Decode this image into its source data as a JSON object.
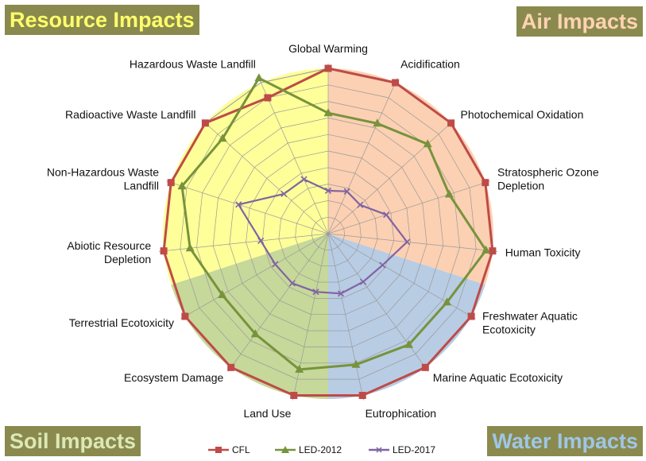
{
  "corner_labels": {
    "resource": "Resource Impacts",
    "air": "Air Impacts",
    "soil": "Soil Impacts",
    "water": "Water Impacts"
  },
  "colors": {
    "resource_fill": "#ffff99",
    "air_fill": "#fcd0b2",
    "water_fill": "#b8cce4",
    "soil_fill": "#c6d89a",
    "grid": "#9a9a9a",
    "CFL": "#be4b48",
    "LED-2012": "#77933c",
    "LED-2017": "#8064a2"
  },
  "chart_data": {
    "type": "radar",
    "categories": [
      "Global Warming",
      "Acidification",
      "Photochemical Oxidation",
      "Stratospheric Ozone Depletion",
      "Human Toxicity",
      "Freshwater Aquatic Ecotoxicity",
      "Marine Aquatic Ecotoxicity",
      "Eutrophication",
      "Land Use",
      "Ecosystem Damage",
      "Terrestrial Ecotoxicity",
      "Abiotic Resource Depletion",
      "Non-Hazardous Waste Landfill",
      "Radioactive Waste Landfill",
      "Hazardous Waste Landfill"
    ],
    "rlim": [
      0,
      1
    ],
    "grid_rings": 10,
    "regions": [
      {
        "name": "Air Impacts",
        "categories": [
          "Global Warming",
          "Acidification",
          "Photochemical Oxidation",
          "Stratospheric Ozone Depletion",
          "Human Toxicity"
        ]
      },
      {
        "name": "Water Impacts",
        "categories": [
          "Freshwater Aquatic Ecotoxicity",
          "Marine Aquatic Ecotoxicity",
          "Eutrophication"
        ]
      },
      {
        "name": "Soil Impacts",
        "categories": [
          "Land Use",
          "Ecosystem Damage",
          "Terrestrial Ecotoxicity"
        ]
      },
      {
        "name": "Resource Impacts",
        "categories": [
          "Abiotic Resource Depletion",
          "Non-Hazardous Waste Landfill",
          "Radioactive Waste Landfill",
          "Hazardous Waste Landfill"
        ]
      }
    ],
    "series": [
      {
        "name": "CFL",
        "marker": "square",
        "values": [
          1.0,
          1.0,
          1.0,
          1.0,
          1.0,
          1.0,
          1.0,
          1.0,
          1.0,
          1.0,
          1.0,
          1.0,
          1.0,
          1.0,
          0.9
        ]
      },
      {
        "name": "LED-2012",
        "marker": "triangle",
        "values": [
          0.73,
          0.73,
          0.81,
          0.77,
          0.96,
          0.83,
          0.83,
          0.81,
          0.84,
          0.75,
          0.74,
          0.84,
          0.93,
          0.86,
          1.03
        ]
      },
      {
        "name": "LED-2017",
        "marker": "x",
        "values": [
          0.26,
          0.28,
          0.26,
          0.37,
          0.48,
          0.38,
          0.36,
          0.37,
          0.36,
          0.37,
          0.37,
          0.41,
          0.57,
          0.36,
          0.36
        ]
      }
    ],
    "legend_position": "bottom"
  }
}
